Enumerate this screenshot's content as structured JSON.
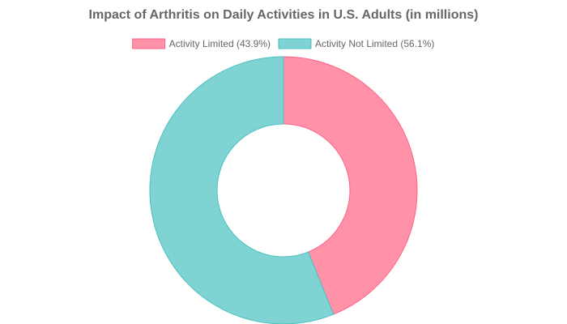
{
  "chart_data": {
    "type": "doughnut",
    "title": "Impact of Arthritis on Daily Activities in U.S. Adults (in millions)",
    "categories": [
      "Activity Limited (43.9%)",
      "Activity Not Limited (56.1%)"
    ],
    "values": [
      43.9,
      56.1
    ],
    "colors": [
      "#ff91a8",
      "#80d3d3"
    ],
    "border_colors": [
      "#ff6384",
      "#4bc0c0"
    ],
    "legend": "top"
  }
}
